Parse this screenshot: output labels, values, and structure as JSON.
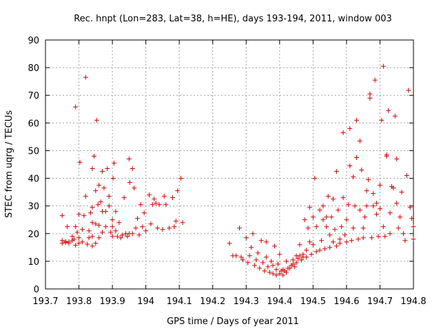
{
  "chart_data": {
    "type": "scatter",
    "title": "Rec. hnpt (Lon=283, Lat=38, h=HE), days 193-194, 2011, window 003",
    "xlabel": "GPS time / Days of year 2011",
    "ylabel": "STEC from uqrg / TECUs",
    "xlim": [
      193.7,
      194.8
    ],
    "ylim": [
      0,
      90
    ],
    "x_ticks": [
      "193.7",
      "193.8",
      "193.9",
      "194",
      "194.1",
      "194.2",
      "194.3",
      "194.4",
      "194.5",
      "194.6",
      "194.7",
      "194.8"
    ],
    "y_ticks": [
      "0",
      "10",
      "20",
      "30",
      "40",
      "50",
      "60",
      "70",
      "80",
      "90"
    ],
    "grid": true,
    "marker": "+",
    "color": "#cc0000",
    "points": [
      [
        193.75,
        16.5
      ],
      [
        193.75,
        17.5
      ],
      [
        193.75,
        26.5
      ],
      [
        193.76,
        16.8
      ],
      [
        193.76,
        17.2
      ],
      [
        193.765,
        22.5
      ],
      [
        193.77,
        16.5
      ],
      [
        193.77,
        17.0
      ],
      [
        193.78,
        17.5
      ],
      [
        193.78,
        19.0
      ],
      [
        193.785,
        18.0
      ],
      [
        193.79,
        15.8
      ],
      [
        193.79,
        22.5
      ],
      [
        193.79,
        65.8
      ],
      [
        193.795,
        20.5
      ],
      [
        193.8,
        16.5
      ],
      [
        193.8,
        18.5
      ],
      [
        193.8,
        27.0
      ],
      [
        193.803,
        45.8
      ],
      [
        193.81,
        17.0
      ],
      [
        193.81,
        21.5
      ],
      [
        193.815,
        26.5
      ],
      [
        193.82,
        33.5
      ],
      [
        193.82,
        76.5
      ],
      [
        193.825,
        16.2
      ],
      [
        193.83,
        18.5
      ],
      [
        193.83,
        21.0
      ],
      [
        193.835,
        27.5
      ],
      [
        193.84,
        15.5
      ],
      [
        193.84,
        19.0
      ],
      [
        193.84,
        24.0
      ],
      [
        193.84,
        29.5
      ],
      [
        193.84,
        43.5
      ],
      [
        193.845,
        48.0
      ],
      [
        193.85,
        16.5
      ],
      [
        193.85,
        23.5
      ],
      [
        193.85,
        35.5
      ],
      [
        193.853,
        61.0
      ],
      [
        193.857,
        30.5
      ],
      [
        193.86,
        18.5
      ],
      [
        193.86,
        23.0
      ],
      [
        193.86,
        37.5
      ],
      [
        193.865,
        31.5
      ],
      [
        193.87,
        20.5
      ],
      [
        193.87,
        28.0
      ],
      [
        193.87,
        42.5
      ],
      [
        193.875,
        36.5
      ],
      [
        193.88,
        22.5
      ],
      [
        193.88,
        28.0
      ],
      [
        193.885,
        43.5
      ],
      [
        193.89,
        30.0
      ],
      [
        193.89,
        33.5
      ],
      [
        193.895,
        20.5
      ],
      [
        193.9,
        19.0
      ],
      [
        193.9,
        22.5
      ],
      [
        193.9,
        25.0
      ],
      [
        193.902,
        40.0
      ],
      [
        193.905,
        45.5
      ],
      [
        193.91,
        21.0
      ],
      [
        193.91,
        28.0
      ],
      [
        193.915,
        19.0
      ],
      [
        193.92,
        24.0
      ],
      [
        193.925,
        18.5
      ],
      [
        193.93,
        19.5
      ],
      [
        193.935,
        33.0
      ],
      [
        193.94,
        20.0
      ],
      [
        193.945,
        19.0
      ],
      [
        193.95,
        47.0
      ],
      [
        193.95,
        20.0
      ],
      [
        193.952,
        38.5
      ],
      [
        193.96,
        43.5
      ],
      [
        193.96,
        20.0
      ],
      [
        193.965,
        36.5
      ],
      [
        193.97,
        22.0
      ],
      [
        193.975,
        25.5
      ],
      [
        193.98,
        19.5
      ],
      [
        193.985,
        30.5
      ],
      [
        193.99,
        22.5
      ],
      [
        193.995,
        27.5
      ],
      [
        194.0,
        21.0
      ],
      [
        194.01,
        34.0
      ],
      [
        194.015,
        23.5
      ],
      [
        194.02,
        30.5
      ],
      [
        194.025,
        32.5
      ],
      [
        194.03,
        31.0
      ],
      [
        194.035,
        22.0
      ],
      [
        194.04,
        30.5
      ],
      [
        194.05,
        21.5
      ],
      [
        194.055,
        33.5
      ],
      [
        194.06,
        30.5
      ],
      [
        194.07,
        22.0
      ],
      [
        194.08,
        33.0
      ],
      [
        194.085,
        22.5
      ],
      [
        194.09,
        24.5
      ],
      [
        194.095,
        35.5
      ],
      [
        194.105,
        40.0
      ],
      [
        194.11,
        24.0
      ],
      [
        194.25,
        16.5
      ],
      [
        194.26,
        12.0
      ],
      [
        194.27,
        12.0
      ],
      [
        194.28,
        22.0
      ],
      [
        194.285,
        11.5
      ],
      [
        194.29,
        10.5
      ],
      [
        194.3,
        18.5
      ],
      [
        194.305,
        9.5
      ],
      [
        194.31,
        12.0
      ],
      [
        194.315,
        15.0
      ],
      [
        194.32,
        20.0
      ],
      [
        194.325,
        8.5
      ],
      [
        194.33,
        10.5
      ],
      [
        194.335,
        13.0
      ],
      [
        194.34,
        7.5
      ],
      [
        194.345,
        17.5
      ],
      [
        194.35,
        9.5
      ],
      [
        194.355,
        6.5
      ],
      [
        194.36,
        11.5
      ],
      [
        194.36,
        17.0
      ],
      [
        194.365,
        8.0
      ],
      [
        194.37,
        6.0
      ],
      [
        194.375,
        10.0
      ],
      [
        194.38,
        5.5
      ],
      [
        194.38,
        8.5
      ],
      [
        194.385,
        15.5
      ],
      [
        194.39,
        5.0
      ],
      [
        194.39,
        7.0
      ],
      [
        194.395,
        9.0
      ],
      [
        194.4,
        5.5
      ],
      [
        194.4,
        12.5
      ],
      [
        194.405,
        6.5
      ],
      [
        194.41,
        5.0
      ],
      [
        194.41,
        7.0
      ],
      [
        194.415,
        6.5
      ],
      [
        194.42,
        6.0
      ],
      [
        194.42,
        10.0
      ],
      [
        194.425,
        7.5
      ],
      [
        194.43,
        7.5
      ],
      [
        194.435,
        8.5
      ],
      [
        194.44,
        9.0
      ],
      [
        194.44,
        10.5
      ],
      [
        194.445,
        8.0
      ],
      [
        194.45,
        9.5
      ],
      [
        194.45,
        12.0
      ],
      [
        194.455,
        11.0
      ],
      [
        194.46,
        16.0
      ],
      [
        194.46,
        12.0
      ],
      [
        194.465,
        10.5
      ],
      [
        194.47,
        11.5
      ],
      [
        194.47,
        12.5
      ],
      [
        194.475,
        25.0
      ],
      [
        194.48,
        11.5
      ],
      [
        194.48,
        14.0
      ],
      [
        194.485,
        22.0
      ],
      [
        194.49,
        17.0
      ],
      [
        194.49,
        29.5
      ],
      [
        194.495,
        12.5
      ],
      [
        194.5,
        26.0
      ],
      [
        194.5,
        16.0
      ],
      [
        194.505,
        40.0
      ],
      [
        194.51,
        13.5
      ],
      [
        194.51,
        22.5
      ],
      [
        194.52,
        14.0
      ],
      [
        194.52,
        28.5
      ],
      [
        194.525,
        17.5
      ],
      [
        194.53,
        30.0
      ],
      [
        194.53,
        25.0
      ],
      [
        194.535,
        14.5
      ],
      [
        194.54,
        22.5
      ],
      [
        194.54,
        26.0
      ],
      [
        194.545,
        33.5
      ],
      [
        194.55,
        15.0
      ],
      [
        194.55,
        19.5
      ],
      [
        194.555,
        26.0
      ],
      [
        194.56,
        32.5
      ],
      [
        194.56,
        17.0
      ],
      [
        194.565,
        21.5
      ],
      [
        194.57,
        15.5
      ],
      [
        194.57,
        42.5
      ],
      [
        194.575,
        28.5
      ],
      [
        194.58,
        16.5
      ],
      [
        194.58,
        18.0
      ],
      [
        194.585,
        22.5
      ],
      [
        194.59,
        56.5
      ],
      [
        194.59,
        33.0
      ],
      [
        194.595,
        19.5
      ],
      [
        194.6,
        17.0
      ],
      [
        194.6,
        25.0
      ],
      [
        194.605,
        30.5
      ],
      [
        194.61,
        44.5
      ],
      [
        194.61,
        58.0
      ],
      [
        194.615,
        17.5
      ],
      [
        194.62,
        22.0
      ],
      [
        194.62,
        40.5
      ],
      [
        194.625,
        30.0
      ],
      [
        194.63,
        47.5
      ],
      [
        194.63,
        61.0
      ],
      [
        194.635,
        18.0
      ],
      [
        194.64,
        28.5
      ],
      [
        194.64,
        53.5
      ],
      [
        194.645,
        43.0
      ],
      [
        194.65,
        18.5
      ],
      [
        194.65,
        22.0
      ],
      [
        194.655,
        26.0
      ],
      [
        194.66,
        30.0
      ],
      [
        194.66,
        35.5
      ],
      [
        194.665,
        39.5
      ],
      [
        194.67,
        70.5
      ],
      [
        194.67,
        69.0
      ],
      [
        194.675,
        18.5
      ],
      [
        194.68,
        34.5
      ],
      [
        194.68,
        30.0
      ],
      [
        194.685,
        75.5
      ],
      [
        194.69,
        31.0
      ],
      [
        194.69,
        27.0
      ],
      [
        194.695,
        19.0
      ],
      [
        194.7,
        37.5
      ],
      [
        194.7,
        29.0
      ],
      [
        194.705,
        61.0
      ],
      [
        194.71,
        80.5
      ],
      [
        194.71,
        22.5
      ],
      [
        194.715,
        19.0
      ],
      [
        194.72,
        48.5
      ],
      [
        194.72,
        48.0
      ],
      [
        194.725,
        64.5
      ],
      [
        194.73,
        27.5
      ],
      [
        194.73,
        20.0
      ],
      [
        194.735,
        37.0
      ],
      [
        194.74,
        36.5
      ],
      [
        194.745,
        62.5
      ],
      [
        194.75,
        47.0
      ],
      [
        194.75,
        31.0
      ],
      [
        194.755,
        22.0
      ],
      [
        194.76,
        26.0
      ],
      [
        194.765,
        35.0
      ],
      [
        194.77,
        20.0
      ],
      [
        194.775,
        17.5
      ],
      [
        194.78,
        41.0
      ],
      [
        194.785,
        71.8
      ],
      [
        194.79,
        29.5
      ],
      [
        194.795,
        25.5
      ],
      [
        194.8,
        18.0
      ],
      [
        194.8,
        22.5
      ]
    ]
  }
}
